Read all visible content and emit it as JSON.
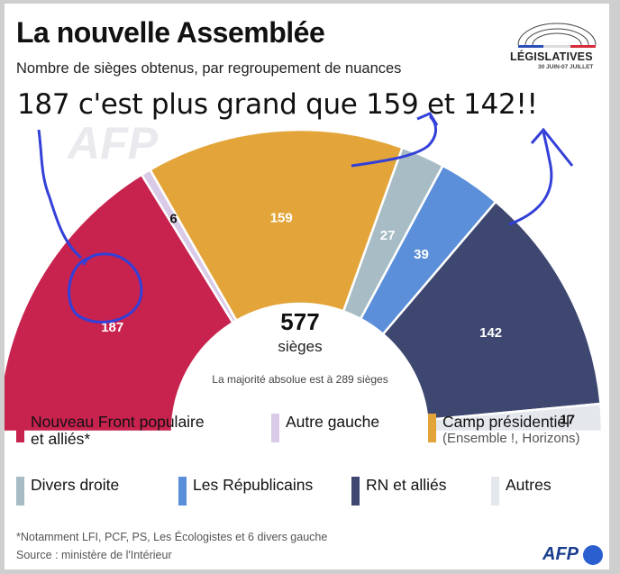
{
  "header": {
    "title": "La nouvelle Assemblée",
    "subtitle": "Nombre de sièges obtenus, par regroupement de nuances",
    "logo_text": "LÉGISLATIVES",
    "logo_dates": "30 JUIN-07 JUILLET",
    "watermark": "AFP"
  },
  "annotation": {
    "text": "187 c'est plus grand que 159 et 142!!",
    "ink_color": "#3340d8"
  },
  "chart_data": {
    "type": "pie",
    "subtype": "parliament-semicircle",
    "total": 577,
    "total_label": "sièges",
    "note": "La majorité absolue est à 289 sièges",
    "series": [
      {
        "name": "Nouveau Front populaire et alliés*",
        "value": 187,
        "color": "#c8234f"
      },
      {
        "name": "Autre gauche",
        "value": 6,
        "color": "#d9cbe8"
      },
      {
        "name": "Camp présidentiel",
        "value": 159,
        "color": "#e3a53a"
      },
      {
        "name": "Divers droite",
        "value": 27,
        "color": "#a7bcc4"
      },
      {
        "name": "Les Républicains",
        "value": 39,
        "color": "#5b8fd9"
      },
      {
        "name": "RN et alliés",
        "value": 142,
        "color": "#3d4770"
      },
      {
        "name": "Autres",
        "value": 17,
        "color": "#e4e8ed"
      }
    ]
  },
  "legend": [
    {
      "label": "Nouveau Front populaire\net alliés*",
      "sub": "",
      "color": "#c8234f"
    },
    {
      "label": "Autre gauche",
      "sub": "",
      "color": "#d9cbe8"
    },
    {
      "label": "Camp présidentiel",
      "sub": "(Ensemble !, Horizons)",
      "color": "#e3a53a"
    },
    {
      "label": "Divers droite",
      "sub": "",
      "color": "#a7bcc4"
    },
    {
      "label": "Les Républicains",
      "sub": "",
      "color": "#5b8fd9"
    },
    {
      "label": "RN et alliés",
      "sub": "",
      "color": "#3d4770"
    },
    {
      "label": "Autres",
      "sub": "",
      "color": "#e4e8ed"
    }
  ],
  "footer": {
    "footnote": "*Notamment LFI, PCF, PS, Les Écologistes et 6 divers gauche",
    "source": "Source : ministère de l'Intérieur",
    "afp": "AFP"
  }
}
